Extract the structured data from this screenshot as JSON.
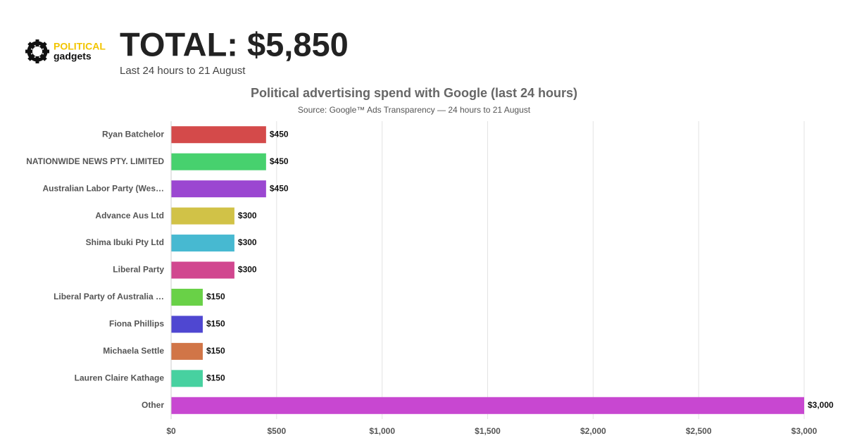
{
  "header": {
    "logo_top": "POLITICAL",
    "logo_bottom": "gadgets",
    "total": "TOTAL: $5,850",
    "subtitle": "Last 24 hours to 21 August"
  },
  "chart_data": {
    "type": "bar",
    "orientation": "horizontal",
    "title": "Political advertising spend with Google (last 24 hours)",
    "subtitle": "Source: Google™ Ads Transparency — 24 hours to 21 August",
    "categories": [
      "Ryan Batchelor",
      "NATIONWIDE NEWS PTY. LIMITED",
      "Australian Labor Party (Wes…",
      "Advance Aus Ltd",
      "Shima Ibuki Pty Ltd",
      "Liberal Party",
      "Liberal Party of Australia …",
      "Fiona Phillips",
      "Michaela Settle",
      "Lauren Claire Kathage",
      "Other"
    ],
    "values": [
      450,
      450,
      450,
      300,
      300,
      300,
      150,
      150,
      150,
      150,
      3000
    ],
    "value_labels": [
      "$450",
      "$450",
      "$450",
      "$300",
      "$300",
      "$300",
      "$150",
      "$150",
      "$150",
      "$150",
      "$3,000"
    ],
    "colors": [
      "#d44a4a",
      "#47d16e",
      "#9b47d1",
      "#d1c247",
      "#47b9d1",
      "#d1478f",
      "#69d147",
      "#4f47d1",
      "#d17547",
      "#47d1a0",
      "#c847d1"
    ],
    "xlim": [
      0,
      3000
    ],
    "xticks": [
      {
        "value": 0,
        "label": "$0"
      },
      {
        "value": 500,
        "label": "$500"
      },
      {
        "value": 1000,
        "label": "$1,000"
      },
      {
        "value": 1500,
        "label": "$1,500"
      },
      {
        "value": 2000,
        "label": "$2,000"
      },
      {
        "value": 2500,
        "label": "$2,500"
      },
      {
        "value": 3000,
        "label": "$3,000"
      }
    ],
    "grid": true
  }
}
